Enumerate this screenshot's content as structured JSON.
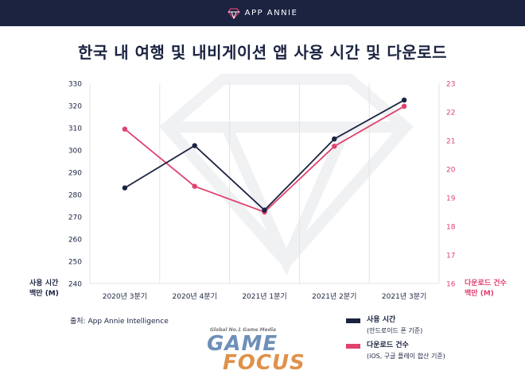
{
  "brand": {
    "name": "APP ANNIE"
  },
  "title": "한국 내 여행 및 내비게이션 앱 사용 시간 및 다운로드",
  "colors": {
    "navy": "#1b2341",
    "pink": "#e0426f"
  },
  "chart_data": {
    "type": "line",
    "categories": [
      "2020년 3분기",
      "2020년 4분기",
      "2021년 1분기",
      "2021년 2분기",
      "2021년 3분기"
    ],
    "series": [
      {
        "name": "사용 시간",
        "axis": "left",
        "values": [
          283,
          302,
          273,
          305,
          322.5
        ]
      },
      {
        "name": "다운로드 건수",
        "axis": "right",
        "values": [
          21.4,
          19.4,
          18.5,
          20.8,
          22.2
        ]
      }
    ],
    "left_axis": {
      "label_line1": "사용 시간",
      "label_line2": "백만 (M)",
      "ylim": [
        240,
        330
      ],
      "ticks": [
        240,
        250,
        260,
        270,
        280,
        290,
        300,
        310,
        320,
        330
      ]
    },
    "right_axis": {
      "label_line1": "다운로드 건수",
      "label_line2": "백만 (M)",
      "ylim": [
        16,
        23
      ],
      "ticks": [
        16,
        17,
        18,
        19,
        20,
        21,
        22,
        23
      ]
    },
    "grid": "vertical"
  },
  "legend": [
    {
      "name": "사용 시간",
      "sub": "(안드로이드 폰 기준)"
    },
    {
      "name": "다운로드 건수",
      "sub": "(iOS, 구글 플레이 합산 기준)"
    }
  ],
  "source": "출처: App Annie Intelligence",
  "watermark": {
    "tagline": "Global No.1 Game Media",
    "word1": "GAME",
    "word2": "FOCUS"
  }
}
